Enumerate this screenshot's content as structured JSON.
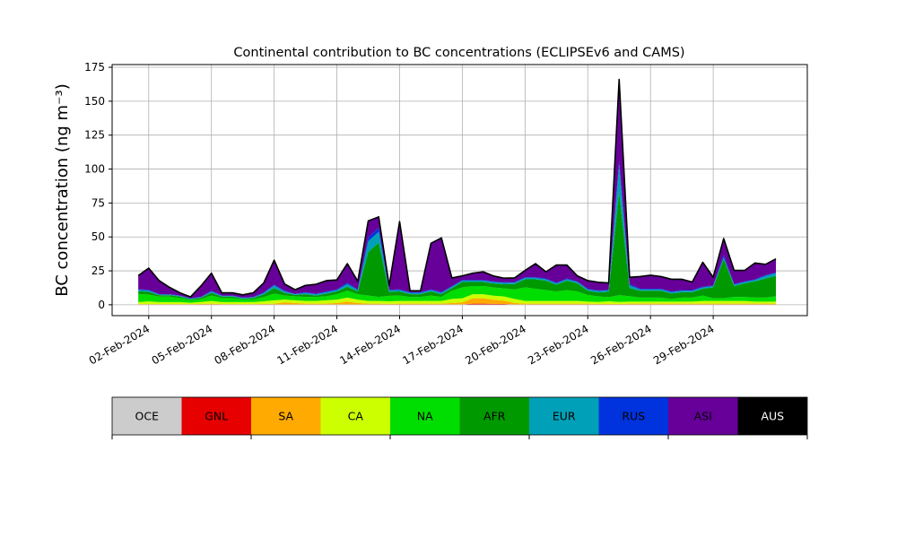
{
  "chart_data": {
    "type": "area",
    "stacked": true,
    "title": "Continental contribution to BC concentrations (ECLIPSEv6 and CAMS)",
    "ylabel": "BC concentration (ng m⁻³)",
    "xlabel": "",
    "ylim": [
      -8,
      177
    ],
    "xlim": [
      "2024-01-31T06:00",
      "2024-03-04T12:00"
    ],
    "grid": true,
    "yticks": [
      0,
      25,
      50,
      75,
      100,
      125,
      150,
      175
    ],
    "xticks": [
      "02-Feb-2024",
      "05-Feb-2024",
      "08-Feb-2024",
      "11-Feb-2024",
      "14-Feb-2024",
      "17-Feb-2024",
      "20-Feb-2024",
      "23-Feb-2024",
      "26-Feb-2024",
      "29-Feb-2024"
    ],
    "x": [
      "2024-02-01T12:00",
      "2024-02-02T00:00",
      "2024-02-02T12:00",
      "2024-02-03T00:00",
      "2024-02-03T12:00",
      "2024-02-04T00:00",
      "2024-02-04T12:00",
      "2024-02-05T00:00",
      "2024-02-05T12:00",
      "2024-02-06T00:00",
      "2024-02-06T12:00",
      "2024-02-07T00:00",
      "2024-02-07T12:00",
      "2024-02-08T00:00",
      "2024-02-08T12:00",
      "2024-02-09T00:00",
      "2024-02-09T12:00",
      "2024-02-10T00:00",
      "2024-02-10T12:00",
      "2024-02-11T00:00",
      "2024-02-11T12:00",
      "2024-02-12T00:00",
      "2024-02-12T12:00",
      "2024-02-13T00:00",
      "2024-02-13T12:00",
      "2024-02-14T00:00",
      "2024-02-14T12:00",
      "2024-02-15T00:00",
      "2024-02-15T12:00",
      "2024-02-16T00:00",
      "2024-02-16T12:00",
      "2024-02-17T00:00",
      "2024-02-17T12:00",
      "2024-02-18T00:00",
      "2024-02-18T12:00",
      "2024-02-19T00:00",
      "2024-02-19T12:00",
      "2024-02-20T00:00",
      "2024-02-20T12:00",
      "2024-02-21T00:00",
      "2024-02-21T12:00",
      "2024-02-22T00:00",
      "2024-02-22T12:00",
      "2024-02-23T00:00",
      "2024-02-23T12:00",
      "2024-02-24T00:00",
      "2024-02-24T12:00",
      "2024-02-25T00:00",
      "2024-02-25T12:00",
      "2024-02-26T00:00",
      "2024-02-26T12:00",
      "2024-02-27T00:00",
      "2024-02-27T12:00",
      "2024-02-28T00:00",
      "2024-02-28T12:00",
      "2024-02-29T00:00",
      "2024-02-29T12:00",
      "2024-03-01T00:00",
      "2024-03-01T12:00",
      "2024-03-02T00:00",
      "2024-03-02T12:00",
      "2024-03-03T00:00"
    ],
    "series": [
      {
        "name": "OCE",
        "color": "#cccccc",
        "values": [
          0.3,
          0.3,
          0.3,
          0.3,
          0.3,
          0.3,
          0.3,
          0.3,
          0.3,
          0.3,
          0.3,
          0.3,
          0.3,
          0.3,
          0.3,
          0.3,
          0.3,
          0.3,
          0.3,
          0.3,
          0.3,
          0.3,
          0.3,
          0.3,
          0.3,
          0.3,
          0.3,
          0.3,
          0.3,
          0.3,
          0.3,
          0.3,
          0.3,
          0.3,
          0.3,
          0.3,
          0.3,
          0.3,
          0.3,
          0.3,
          0.3,
          0.3,
          0.3,
          0.3,
          0.3,
          0.3,
          0.3,
          0.3,
          0.3,
          0.3,
          0.3,
          0.3,
          0.3,
          0.3,
          0.3,
          0.3,
          0.3,
          0.3,
          0.3,
          0.3,
          0.3,
          0.3
        ]
      },
      {
        "name": "GNL",
        "color": "#e60000",
        "values": [
          0,
          0,
          0,
          0,
          0,
          0,
          0,
          0,
          0,
          0,
          0,
          0,
          0,
          0,
          0,
          0,
          0,
          0,
          0,
          0,
          0,
          0,
          0,
          0,
          0,
          0,
          0,
          0,
          0,
          0,
          0,
          0,
          0.5,
          0.5,
          0.4,
          0.3,
          0,
          0,
          0,
          0,
          0,
          0,
          0,
          0,
          0,
          0,
          0,
          0,
          0,
          0,
          0,
          0,
          0,
          0,
          0,
          0,
          0,
          0,
          0,
          0,
          0,
          0
        ]
      },
      {
        "name": "SA",
        "color": "#ffaa00",
        "values": [
          0.2,
          0.2,
          0.2,
          0.2,
          0.2,
          0.2,
          0.3,
          0.5,
          0.2,
          0.2,
          0.2,
          0.2,
          0.3,
          0.5,
          1.5,
          1,
          0.5,
          0.5,
          0.5,
          1,
          2,
          1,
          0.5,
          0.5,
          0.3,
          0.5,
          0.5,
          0.5,
          0.5,
          0.5,
          1,
          1.5,
          4,
          4,
          3,
          2.5,
          1,
          0.5,
          0.5,
          0.5,
          0.5,
          0.5,
          0.5,
          0.5,
          0.3,
          0.3,
          0.3,
          0.5,
          0.5,
          0.5,
          0.5,
          0.5,
          0.5,
          0.5,
          0.5,
          0.5,
          0.5,
          0.5,
          0.5,
          0.5,
          0.5,
          0.5
        ]
      },
      {
        "name": "CA",
        "color": "#ccff00",
        "values": [
          1.5,
          2,
          1.5,
          1.5,
          1.5,
          1,
          1.5,
          2,
          1.5,
          1.5,
          1.5,
          1.5,
          2,
          2.5,
          2,
          2,
          2,
          2,
          2.5,
          2.5,
          3,
          2.5,
          2,
          2,
          2,
          2,
          2,
          2,
          2,
          2,
          3,
          3,
          3,
          3,
          3,
          3,
          3,
          2,
          2,
          2,
          2,
          2,
          2,
          1.5,
          1.5,
          2,
          1.5,
          1.5,
          1.5,
          1.5,
          1.5,
          1.5,
          1.5,
          1.5,
          2,
          2,
          2,
          2,
          2,
          1.5,
          1.5,
          1.5
        ]
      },
      {
        "name": "NA",
        "color": "#00dd00",
        "values": [
          6,
          5,
          4,
          4,
          3,
          2,
          2,
          4,
          3,
          3,
          2,
          2,
          3,
          5,
          3,
          3,
          3,
          3,
          3,
          4,
          5,
          4,
          4,
          3,
          4,
          4,
          3,
          3,
          4,
          3,
          6,
          8,
          6,
          6,
          6,
          6,
          7,
          10,
          9,
          8,
          7,
          8,
          7,
          5,
          4,
          3,
          5,
          4,
          3,
          3,
          3,
          2,
          3,
          3,
          4,
          2,
          2,
          3,
          3,
          3,
          3,
          4
        ]
      },
      {
        "name": "AFR",
        "color": "#009900",
        "values": [
          2,
          2,
          1,
          1,
          1,
          0.5,
          1,
          2,
          1,
          1,
          0.5,
          1,
          2,
          4,
          2,
          1,
          2,
          1,
          2,
          2,
          3,
          2,
          32,
          40,
          3,
          3,
          2,
          2,
          3,
          2,
          2,
          4,
          3,
          3,
          3,
          3,
          4,
          6,
          7,
          7,
          5,
          7,
          6,
          3,
          3,
          4,
          76,
          6,
          5,
          5,
          5,
          4,
          4,
          4,
          5,
          8,
          29,
          8,
          10,
          12,
          14,
          15
        ]
      },
      {
        "name": "EUR",
        "color": "#00a0b8",
        "values": [
          1,
          1,
          0.5,
          0.5,
          0.5,
          0.5,
          0.5,
          1,
          0.5,
          0.5,
          0.5,
          0.5,
          1,
          2,
          1,
          0.5,
          1,
          1,
          1,
          1,
          2,
          1,
          8,
          8,
          1,
          1,
          1,
          1,
          1,
          1,
          1,
          1,
          1,
          1,
          1,
          1,
          1,
          1,
          1,
          1,
          1,
          1,
          1,
          1,
          1,
          1,
          20,
          2,
          1,
          1,
          1,
          1,
          1,
          1,
          1,
          1,
          1,
          1,
          1,
          1,
          2,
          2
        ]
      },
      {
        "name": "RUS",
        "color": "#0033dd",
        "values": [
          0.5,
          0.5,
          0.3,
          0.3,
          0.3,
          0.3,
          0.3,
          0.5,
          0.3,
          0.3,
          0.3,
          0.3,
          0.5,
          0.5,
          0.5,
          0.3,
          0.5,
          0.3,
          0.5,
          0.5,
          1,
          0.5,
          3,
          3,
          0.5,
          0.5,
          0.5,
          0.5,
          0.5,
          0.5,
          0.5,
          0.5,
          0.5,
          0.5,
          0.5,
          0.5,
          0.5,
          0.5,
          0.5,
          0.5,
          0.5,
          0.5,
          0.5,
          0.5,
          0.5,
          0.5,
          3,
          1,
          0.5,
          0.5,
          0.5,
          0.5,
          0.5,
          0.5,
          0.5,
          0.5,
          2,
          0.5,
          0.5,
          0.5,
          0.5,
          0.5
        ]
      },
      {
        "name": "ASI",
        "color": "#660099",
        "values": [
          10,
          16,
          10,
          5,
          2,
          1,
          8,
          13,
          2,
          2,
          2,
          3,
          7,
          18,
          5,
          3,
          5,
          7,
          8,
          7,
          14,
          6,
          12,
          8,
          3,
          50,
          1,
          1,
          34,
          40,
          6,
          3,
          5,
          6,
          4,
          3,
          3,
          5,
          10,
          5,
          13,
          10,
          4,
          6,
          6,
          5,
          60,
          5,
          9,
          10,
          9,
          9,
          8,
          6,
          18,
          6,
          12,
          10,
          8,
          12,
          8,
          10
        ]
      },
      {
        "name": "AUS",
        "color": "#000000",
        "values": [
          0,
          0,
          0,
          0,
          0,
          0,
          0,
          0,
          0,
          0,
          0,
          0,
          0,
          0,
          0,
          0,
          0,
          0,
          0,
          0,
          0,
          0,
          0,
          0,
          0,
          0,
          0,
          0,
          0,
          0,
          0,
          0,
          0,
          0,
          0,
          0,
          0,
          0,
          0,
          0,
          0,
          0,
          0,
          0,
          0,
          0,
          0,
          0,
          0,
          0,
          0,
          0,
          0,
          0,
          0,
          0,
          0,
          0,
          0,
          0,
          0,
          0
        ]
      }
    ],
    "legend": {
      "placement": "below",
      "entries": [
        {
          "label": "OCE",
          "color": "#cccccc",
          "text_color": "#000000"
        },
        {
          "label": "GNL",
          "color": "#e60000",
          "text_color": "#000000"
        },
        {
          "label": "SA",
          "color": "#ffaa00",
          "text_color": "#000000"
        },
        {
          "label": "CA",
          "color": "#ccff00",
          "text_color": "#000000"
        },
        {
          "label": "NA",
          "color": "#00dd00",
          "text_color": "#000000"
        },
        {
          "label": "AFR",
          "color": "#009900",
          "text_color": "#000000"
        },
        {
          "label": "EUR",
          "color": "#00a0b8",
          "text_color": "#000000"
        },
        {
          "label": "RUS",
          "color": "#0033dd",
          "text_color": "#000000"
        },
        {
          "label": "ASI",
          "color": "#660099",
          "text_color": "#000000"
        },
        {
          "label": "AUS",
          "color": "#000000",
          "text_color": "#ffffff"
        }
      ]
    }
  }
}
